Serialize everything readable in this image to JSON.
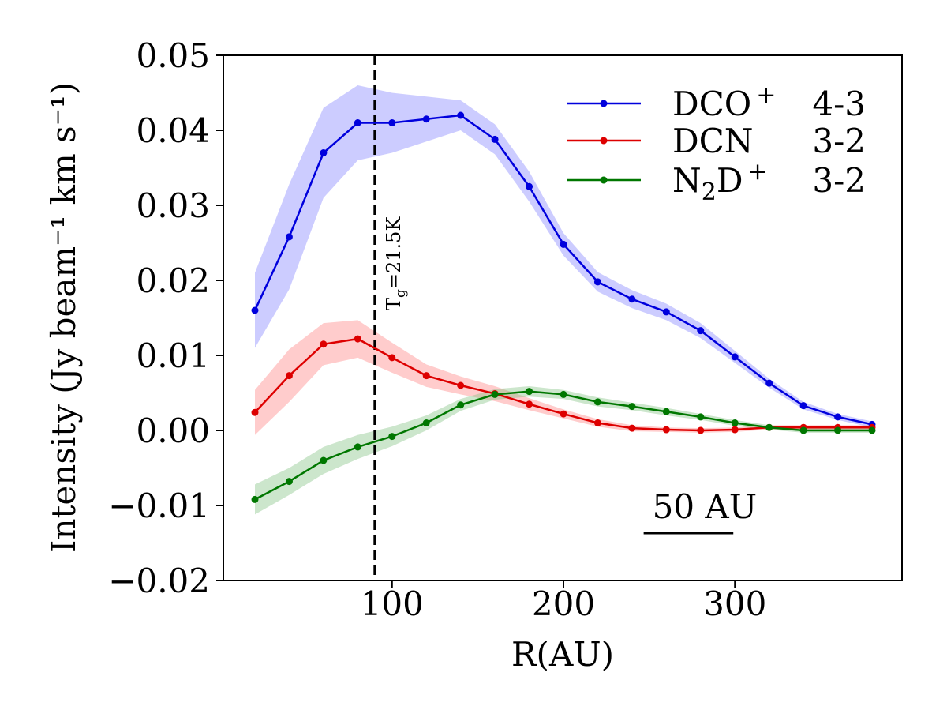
{
  "chart_data": {
    "type": "line",
    "xlabel": "R(AU)",
    "ylabel": "Intensity (Jy beam⁻¹ km s⁻¹)",
    "xlim": [
      5,
      385
    ],
    "ylim": [
      -0.02,
      0.05
    ],
    "x_ticks": [
      100,
      200,
      300
    ],
    "x_tick_labels": [
      "100",
      "200",
      "300"
    ],
    "y_ticks": [
      -0.02,
      -0.01,
      0.0,
      0.01,
      0.02,
      0.03,
      0.04,
      0.05
    ],
    "y_tick_labels": [
      "−0.02",
      "−0.01",
      "0.00",
      "0.01",
      "0.02",
      "0.03",
      "0.04",
      "0.05"
    ],
    "x": [
      20,
      40,
      60,
      80,
      100,
      120,
      140,
      160,
      180,
      200,
      220,
      240,
      260,
      280,
      300,
      320,
      340,
      360,
      380
    ],
    "series": [
      {
        "name": "DCO⁺ 4-3",
        "legend_label": "DCO",
        "legend_sup": "+",
        "legend_trans": "4-3",
        "color": "#0000dd",
        "band_color": "#8080ff",
        "values": [
          0.016,
          0.0258,
          0.037,
          0.041,
          0.041,
          0.0415,
          0.042,
          0.0388,
          0.0325,
          0.0248,
          0.0198,
          0.0175,
          0.0158,
          0.0133,
          0.0098,
          0.0063,
          0.0033,
          0.0018,
          0.0008
        ],
        "err": [
          0.005,
          0.007,
          0.006,
          0.005,
          0.004,
          0.003,
          0.002,
          0.002,
          0.002,
          0.0015,
          0.0013,
          0.0012,
          0.0011,
          0.001,
          0.0008,
          0.0006,
          0.0005,
          0.0004,
          0.0004
        ]
      },
      {
        "name": "DCN 3-2",
        "legend_label": "DCN",
        "legend_sup": "",
        "legend_trans": "3-2",
        "color": "#dd0000",
        "band_color": "#ff8080",
        "values": [
          0.0024,
          0.0073,
          0.0115,
          0.0122,
          0.0097,
          0.0073,
          0.006,
          0.0049,
          0.0035,
          0.0022,
          0.001,
          0.0003,
          0.0001,
          0.0,
          0.0001,
          0.0004,
          0.0004,
          0.0004,
          0.0004
        ],
        "err": [
          0.003,
          0.0035,
          0.0028,
          0.0025,
          0.002,
          0.0015,
          0.0012,
          0.001,
          0.0008,
          0.0006,
          0.0005,
          0.0004,
          0.0003,
          0.0003,
          0.0003,
          0.0003,
          0.0003,
          0.0003,
          0.0003
        ]
      },
      {
        "name": "N₂D⁺ 3-2",
        "legend_label": "N",
        "legend_sub": "2",
        "legend_label2": "D",
        "legend_sup": "+",
        "legend_trans": "3-2",
        "color": "#007700",
        "band_color": "#80c080",
        "values": [
          -0.0092,
          -0.0068,
          -0.004,
          -0.0022,
          -0.0008,
          0.001,
          0.0034,
          0.0048,
          0.0052,
          0.0048,
          0.0038,
          0.0032,
          0.0025,
          0.0018,
          0.001,
          0.0004,
          0.0,
          0.0,
          0.0
        ],
        "err": [
          0.002,
          0.0018,
          0.0018,
          0.0016,
          0.0013,
          0.001,
          0.0008,
          0.0007,
          0.0007,
          0.0006,
          0.0006,
          0.0005,
          0.0005,
          0.0004,
          0.0004,
          0.0003,
          0.0003,
          0.0003,
          0.0003
        ]
      }
    ],
    "legend_position": "top-right",
    "vline": {
      "x": 90,
      "style": "dashed",
      "color": "#000000",
      "label_main": "T",
      "label_sub": "g",
      "label_rest": "=21.5K"
    },
    "scalebar": {
      "label": "50 AU",
      "x_start": 250,
      "x_end": 300,
      "y": -0.0135
    },
    "grid": false
  }
}
